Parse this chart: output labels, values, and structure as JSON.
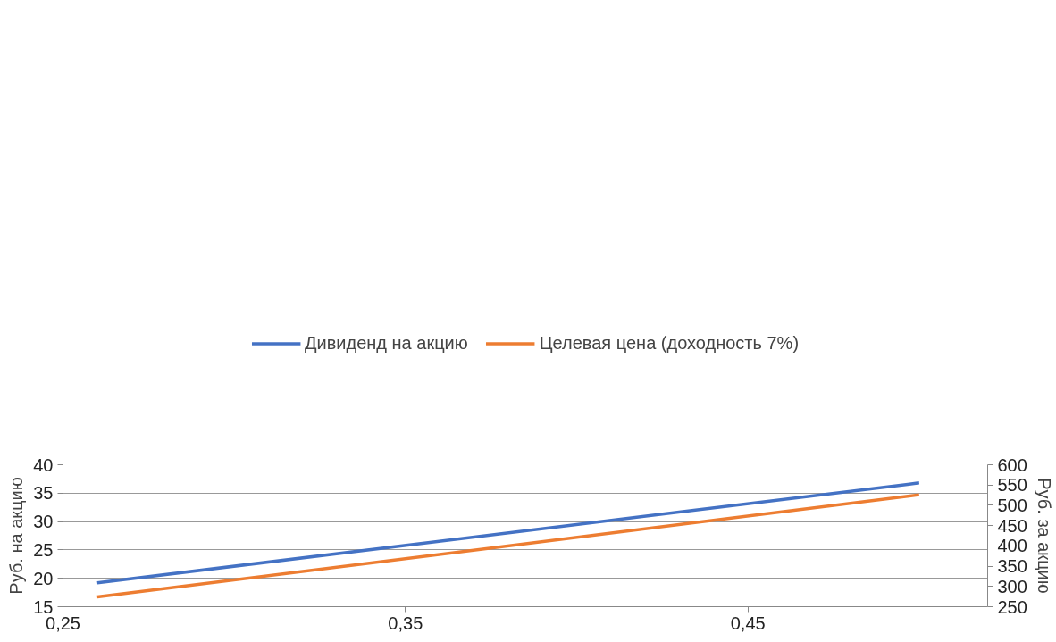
{
  "chart_data": {
    "type": "line",
    "x": [
      0.26,
      0.5
    ],
    "series": [
      {
        "name": "Дивиденд на акцию",
        "color": "#4472c4",
        "values": [
          19.2,
          36.8
        ]
      },
      {
        "name": "Целевая цена (доходность 7%)",
        "color": "#ed7d31",
        "values": [
          274,
          526
        ],
        "axis": "y2"
      }
    ],
    "ylabel": "Руб. на акцию",
    "y2label": "Руб. за акцию",
    "xlim": [
      0.25,
      0.52
    ],
    "xticks": [
      {
        "value": 0.25,
        "label": "0,25"
      },
      {
        "value": 0.35,
        "label": "0,35"
      },
      {
        "value": 0.45,
        "label": "0,45"
      }
    ],
    "ylim": [
      15,
      40
    ],
    "yticks": [
      15,
      20,
      25,
      30,
      35,
      40
    ],
    "y2lim": [
      250,
      600
    ],
    "y2ticks": [
      250,
      300,
      350,
      400,
      450,
      500,
      550,
      600
    ],
    "grid": "y",
    "legend": "top",
    "line_style": "solid",
    "marker": "none"
  }
}
